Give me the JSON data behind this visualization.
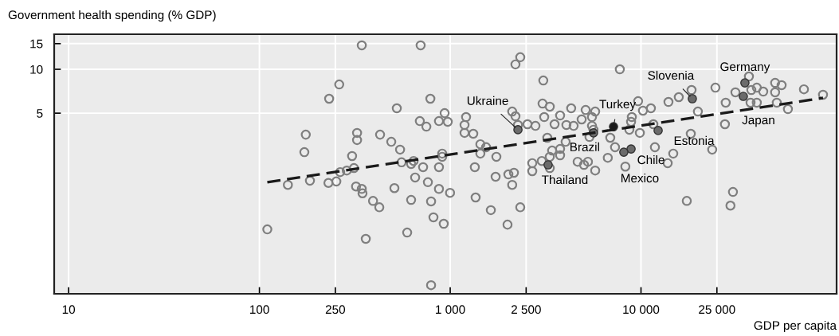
{
  "chart_data": {
    "type": "scatter",
    "xlabel": "GDP per capita",
    "ylabel": "Government health spending (% GDP)",
    "log": "xy",
    "grid": true,
    "legend": false,
    "xlim": [
      8.4,
      106000
    ],
    "ylim": [
      0.288,
      17.4
    ],
    "xticks": [
      10,
      100,
      250,
      {
        "value": 1000,
        "label": "1 000"
      },
      {
        "value": 2500,
        "label": "2 500"
      },
      {
        "value": 10000,
        "label": "10 000"
      },
      {
        "value": 25000,
        "label": "25 000"
      }
    ],
    "yticks": [
      5,
      10,
      15
    ],
    "series": [
      {
        "marker": "circle",
        "color": "#7f7f7f",
        "x": [
          344,
          700,
          2329,
          2198,
          262,
          232,
          787,
          525,
          935,
          2113,
          2198,
          693,
          873,
          971,
          1211,
          1189,
          750,
          2265,
          175,
          325,
          325,
          429,
          1189,
          1321,
          491,
          546,
          1439,
          1542,
          172,
          306,
          908,
          908,
          1439,
          1746,
          313,
          643,
          556,
          624,
          721,
          873,
          1346,
          265,
          287,
          655,
          764,
          1730,
          2018,
          2158,
          2113,
          141,
          184,
          230,
          253,
          321,
          344,
          347,
          510,
          873,
          998,
          394,
          425,
          624,
          794,
          1359,
          1633,
          2329,
          817,
          925,
          1997,
          110,
          595,
          361,
          794,
          3076,
          7745,
          18410,
          24550,
          36790,
          31260,
          37870,
          40460,
          43730,
          50470,
          54590,
          50470,
          71450,
          89950,
          37520,
          40460,
          51500,
          58900,
          27800,
          27540,
          15780,
          13930,
          19870,
          9660,
          11270,
          10240,
          8954,
          8872,
          8690,
          9863,
          11610,
          18240,
          23620,
          11830,
          14760,
          13800,
          8279,
          7311,
          6699,
          6902,
          5754,
          5128,
          5534,
          4887,
          4306,
          3767,
          3326,
          3048,
          3110,
          3524,
          4064,
          4436,
          5534,
          5636,
          5370,
          2541,
          2798,
          3228,
          4027,
          3767,
          3420,
          3767,
          3326,
          3020,
          2692,
          2692,
          3326,
          4656,
          5272,
          5024,
          5754,
          17380,
          30340,
          29440
        ],
        "values": [
          14.6,
          14.6,
          12.1,
          10.8,
          7.87,
          6.28,
          6.28,
          5.4,
          5.0,
          5.13,
          4.76,
          4.41,
          4.41,
          4.36,
          4.7,
          4.15,
          4.04,
          4.15,
          3.56,
          3.66,
          3.27,
          3.56,
          3.66,
          3.61,
          3.18,
          2.81,
          3.06,
          2.92,
          2.7,
          2.54,
          2.64,
          2.51,
          2.64,
          2.51,
          2.1,
          2.35,
          2.3,
          2.24,
          2.13,
          2.13,
          2.13,
          1.97,
          2.02,
          1.81,
          1.68,
          1.83,
          1.9,
          1.95,
          1.61,
          1.61,
          1.72,
          1.66,
          1.7,
          1.57,
          1.51,
          1.41,
          1.53,
          1.51,
          1.42,
          1.25,
          1.13,
          1.27,
          1.24,
          1.32,
          1.08,
          1.13,
          0.964,
          0.871,
          0.859,
          0.797,
          0.758,
          0.686,
          0.33,
          8.38,
          10.0,
          7.21,
          7.48,
          8.93,
          6.95,
          7.21,
          7.48,
          7.03,
          8.07,
          7.78,
          6.95,
          7.29,
          6.69,
          5.9,
          5.9,
          5.9,
          5.33,
          5.9,
          4.2,
          6.44,
          5.97,
          5.13,
          6.04,
          5.4,
          5.2,
          4.7,
          4.36,
          3.85,
          3.66,
          4.2,
          3.61,
          2.81,
          2.92,
          2.64,
          2.27,
          2.15,
          2.92,
          2.47,
          3.39,
          5.13,
          5.26,
          4.7,
          4.53,
          5.4,
          4.82,
          5.54,
          5.82,
          4.7,
          4.2,
          4.15,
          4.09,
          4.09,
          3.85,
          3.43,
          4.2,
          4.09,
          3.39,
          3.18,
          2.84,
          2.77,
          2.57,
          2.51,
          2.35,
          2.27,
          2.0,
          2.1,
          2.32,
          2.32,
          2.21,
          2.02,
          1.25,
          1.44,
          1.16
        ]
      },
      {
        "marker": "circle",
        "colors": [
          "#6b6b6b",
          "#1a1a1a",
          "#6b6b6b",
          "#6b6b6b",
          "#6b6b6b",
          "#6b6b6b",
          "#6b6b6b",
          "#6b6b6b",
          "#6b6b6b",
          "#6b6b6b"
        ],
        "x": [
          2265,
          7178,
          5636,
          3260,
          8872,
          8128,
          12300,
          18580,
          35050,
          34390
        ],
        "values": [
          3.85,
          4.04,
          3.66,
          2.21,
          2.84,
          2.7,
          3.8,
          6.28,
          8.07,
          6.52
        ]
      },
      {
        "type": "line",
        "marker": "none",
        "color": "#1a1a1a",
        "line_style": "dashed",
        "x": [
          110,
          89950
        ],
        "values": [
          1.68,
          6.36
        ]
      }
    ],
    "annotations": [
      {
        "text": "Ukraine",
        "x": 2265,
        "y": 3.85
      },
      {
        "text": "Turkey",
        "x": 7178,
        "y": 4.04
      },
      {
        "text": "Brazil",
        "x": 5636,
        "y": 3.66
      },
      {
        "text": "Thailand",
        "x": 3260,
        "y": 2.21
      },
      {
        "text": "Chile",
        "x": 8872,
        "y": 2.84
      },
      {
        "text": "Mexico",
        "x": 8128,
        "y": 2.7
      },
      {
        "text": "Estonia",
        "x": 12300,
        "y": 3.8
      },
      {
        "text": "Slovenia",
        "x": 18580,
        "y": 6.28
      },
      {
        "text": "Germany",
        "x": 35050,
        "y": 8.07
      },
      {
        "text": "Japan",
        "x": 34390,
        "y": 6.52
      }
    ]
  }
}
